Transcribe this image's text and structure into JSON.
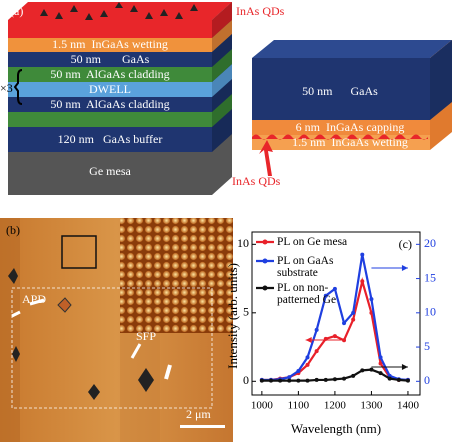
{
  "panel_a": {
    "tag": "(a)",
    "qd_label": "InAs QDs",
    "repeat": "×3",
    "layers": [
      "1.5 nm  InGaAs wetting",
      "50 nm       GaAs",
      "50 nm  AlGaAs cladding",
      "DWELL",
      "50 nm  AlGaAs cladding",
      "120 nm   GaAs buffer",
      "Ge mesa"
    ],
    "detail": {
      "layers": [
        "50 nm      GaAs",
        "6 nm  InGaAs capping",
        "1.5 nm  InGaAs wetting"
      ],
      "qd_label": "InAs QDs"
    }
  },
  "panel_b": {
    "tag": "(b)",
    "labels": [
      "APD",
      "SFP"
    ],
    "scale_bar": "2 μm"
  },
  "chart_data": {
    "type": "line",
    "annotation": "(c)",
    "xlabel": "Wavelength (nm)",
    "ylabel": "Intensity (arb. units)",
    "x": [
      1000,
      1025,
      1050,
      1075,
      1100,
      1125,
      1150,
      1175,
      1200,
      1225,
      1250,
      1275,
      1300,
      1325,
      1350,
      1375,
      1400
    ],
    "xlim": [
      973,
      1433
    ],
    "xticks": [
      1000,
      1100,
      1200,
      1300,
      1400
    ],
    "ylim": [
      -1,
      10.9
    ],
    "yticks": [
      0,
      5,
      10
    ],
    "y2lim": [
      -2,
      21.8
    ],
    "y2ticks": [
      0,
      5,
      10,
      15,
      20
    ],
    "y2color": "#1f3fe0",
    "legend": "upper left",
    "series": [
      {
        "name": "PL on Ge mesa",
        "color": "#e8202a",
        "values": [
          0.1,
          0.1,
          0.2,
          0.3,
          0.6,
          1.2,
          2.2,
          3.1,
          3.3,
          3.0,
          4.5,
          7.3,
          5.0,
          1.3,
          0.3,
          0.1,
          0.1
        ]
      },
      {
        "name": "PL on GaAs substrate",
        "color": "#1f3fe0",
        "axis": "y2",
        "values": [
          0.2,
          0.2,
          0.3,
          0.6,
          1.5,
          3.5,
          7.5,
          12.5,
          13.5,
          8.5,
          10,
          18.5,
          12,
          3.5,
          0.8,
          0.3,
          0.2
        ]
      },
      {
        "name": "PL on non-patterned Ge",
        "color": "#111111",
        "axis": "y2",
        "values": [
          0.1,
          0.1,
          0.1,
          0.1,
          0.1,
          0.1,
          0.2,
          0.2,
          0.3,
          0.4,
          0.8,
          1.6,
          1.7,
          1.2,
          0.4,
          0.2,
          0.1
        ]
      }
    ]
  }
}
